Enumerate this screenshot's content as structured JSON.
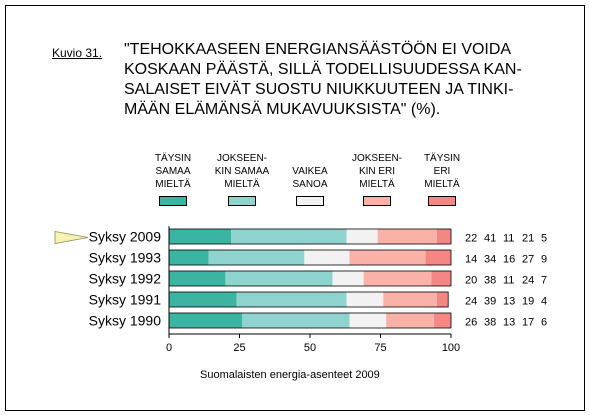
{
  "figure": {
    "label": "Kuvio 31.",
    "title_lines": [
      "\"TEHOKKAASEEN ENERGIANSÄÄSTÖÖN EI VOIDA",
      "KOSKAAN PÄÄSTÄ, SILLÄ TODELLISUUDESSA KAN-",
      "SALAISET EIVÄT SUOSTU NIUKKUUTEEN JA TINKI-",
      "MÄÄN ELÄMÄNSÄ MUKAVUUKSISTA\" (%)."
    ],
    "caption": "Suomalaisten energia-asenteet 2009"
  },
  "legend": [
    {
      "lines": [
        "TÄYSIN",
        "SAMAA",
        "MIELTÄ"
      ],
      "color": "#3cb4a2"
    },
    {
      "lines": [
        "JOKSEEN-",
        "KIN SAMAA",
        "MIELTÄ"
      ],
      "color": "#8fd3cf"
    },
    {
      "lines": [
        "VAIKEA",
        "SANOA"
      ],
      "color": "#f2f2f2"
    },
    {
      "lines": [
        "JOKSEEN-",
        "KIN ERI",
        "MIELTÄ"
      ],
      "color": "#f9b1a8"
    },
    {
      "lines": [
        "TÄYSIN",
        "ERI",
        "MIELTÄ"
      ],
      "color": "#f48783"
    }
  ],
  "chart_data": {
    "type": "bar",
    "orientation": "horizontal",
    "stacked": true,
    "categories": [
      "Syksy 2009",
      "Syksy 1993",
      "Syksy 1992",
      "Syksy 1991",
      "Syksy 1990"
    ],
    "series": [
      {
        "name": "TÄYSIN SAMAA MIELTÄ",
        "values": [
          22,
          14,
          20,
          24,
          26
        ],
        "color": "#3cb4a2"
      },
      {
        "name": "JOKSEENKIN SAMAA MIELTÄ",
        "values": [
          41,
          34,
          38,
          39,
          38
        ],
        "color": "#8fd3cf"
      },
      {
        "name": "VAIKEA SANOA",
        "values": [
          11,
          16,
          11,
          13,
          13
        ],
        "color": "#f2f2f2"
      },
      {
        "name": "JOKSEENKIN ERI MIELTÄ",
        "values": [
          21,
          27,
          24,
          19,
          17
        ],
        "color": "#f9b1a8"
      },
      {
        "name": "TÄYSIN ERI MIELTÄ",
        "values": [
          5,
          9,
          7,
          4,
          6
        ],
        "color": "#f48783"
      }
    ],
    "xlim": [
      0,
      100
    ],
    "xticks": [
      0,
      25,
      50,
      75,
      100
    ],
    "highlighted_category": "Syksy 2009",
    "grid": false
  }
}
